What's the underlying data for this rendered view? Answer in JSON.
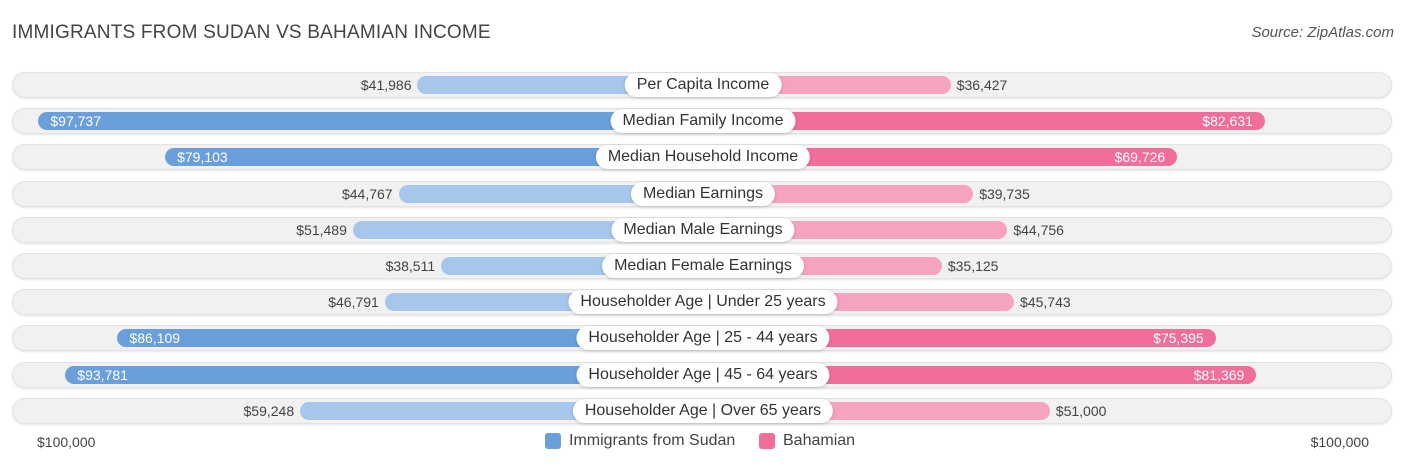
{
  "chart_data": {
    "type": "bar",
    "orientation": "diverging-horizontal",
    "title": "IMMIGRANTS FROM SUDAN VS BAHAMIAN INCOME",
    "source": "Source: ZipAtlas.com",
    "categories": [
      "Per Capita Income",
      "Median Family Income",
      "Median Household Income",
      "Median Earnings",
      "Median Male Earnings",
      "Median Female Earnings",
      "Householder Age | Under 25 years",
      "Householder Age | 25 - 44 years",
      "Householder Age | 45 - 64 years",
      "Householder Age | Over 65 years"
    ],
    "series": [
      {
        "name": "Immigrants from Sudan",
        "color": "#6a9fdc",
        "color_light": "#a6c6eb",
        "values": [
          41986,
          97737,
          79103,
          44767,
          51489,
          38511,
          46791,
          86109,
          93781,
          59248
        ],
        "labels": [
          "$41,986",
          "$97,737",
          "$79,103",
          "$44,767",
          "$51,489",
          "$38,511",
          "$46,791",
          "$86,109",
          "$93,781",
          "$59,248"
        ]
      },
      {
        "name": "Bahamian",
        "color": "#f06e98",
        "color_light": "#f5a3bf",
        "values": [
          36427,
          82631,
          69726,
          39735,
          44756,
          35125,
          45743,
          75395,
          81369,
          51000
        ],
        "labels": [
          "$36,427",
          "$82,631",
          "$69,726",
          "$39,735",
          "$44,756",
          "$35,125",
          "$45,743",
          "$75,395",
          "$81,369",
          "$51,000"
        ]
      }
    ],
    "xlim": [
      0,
      100000
    ],
    "axis_left_label": "$100,000",
    "axis_right_label": "$100,000",
    "legend_position": "bottom-center"
  }
}
